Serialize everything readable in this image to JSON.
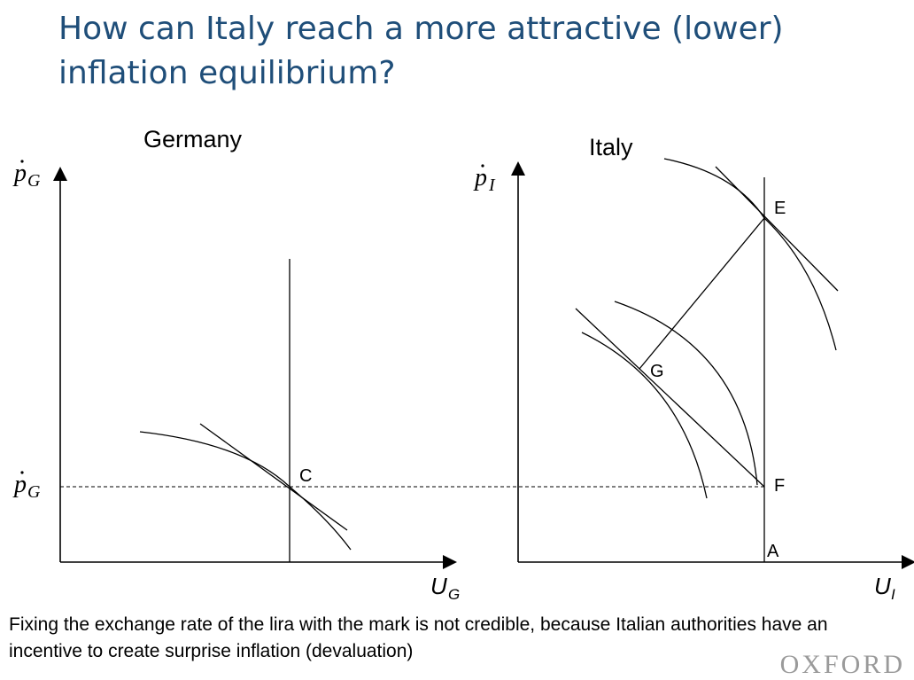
{
  "slide": {
    "title": "How can Italy reach a more attractive (lower) inflation equilibrium?",
    "caption": "Fixing the exchange rate of the lira with the mark is not credible, because Italian authorities have an incentive to create surprise inflation (devaluation)",
    "brand": "OXFORD"
  },
  "germany": {
    "label": "Germany",
    "y_axis": {
      "symbol": "p",
      "sub": "G"
    },
    "x_axis": {
      "symbol": "U",
      "sub": "G"
    },
    "level_tick": {
      "symbol": "p",
      "sub": "G"
    },
    "points": {
      "C": "C"
    }
  },
  "italy": {
    "label": "Italy",
    "y_axis": {
      "symbol": "p",
      "sub": "I"
    },
    "x_axis": {
      "symbol": "U",
      "sub": "I"
    },
    "points": {
      "E": "E",
      "G": "G",
      "F": "F",
      "A": "A"
    }
  },
  "colors": {
    "title": "#1f4e79",
    "lines": "#000000",
    "brand": "#9a9a9a"
  }
}
